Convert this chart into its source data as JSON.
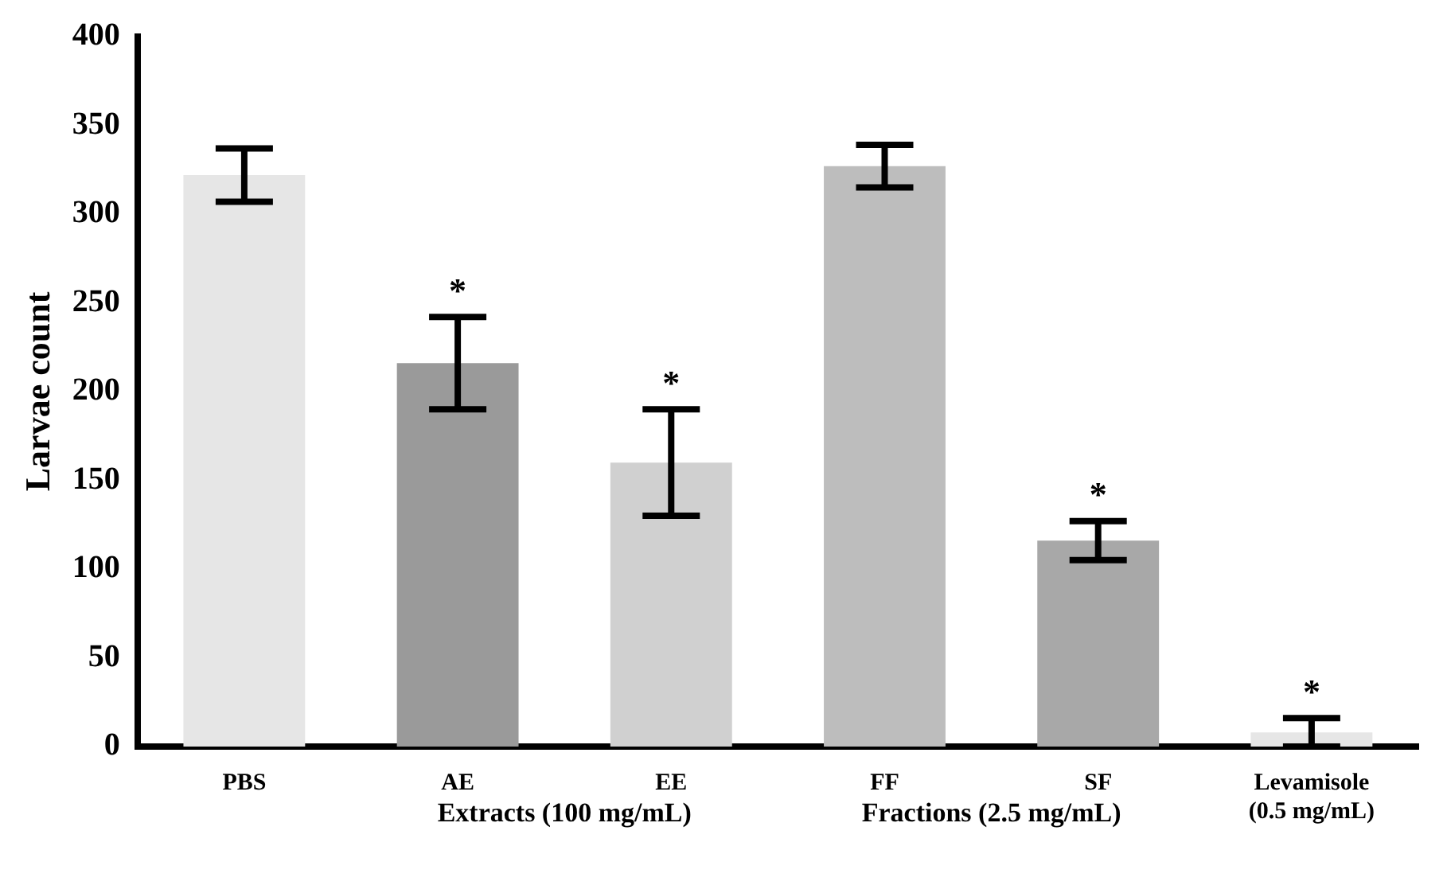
{
  "chart_data": {
    "type": "bar",
    "ylabel": "Larvae count",
    "categories": [
      "PBS",
      "AE",
      "EE",
      "FF",
      "SF",
      "Levamisole (0.5 mg/mL)"
    ],
    "values": [
      322,
      216,
      160,
      327,
      116,
      8
    ],
    "errors": [
      15,
      26,
      30,
      12,
      11,
      8
    ],
    "colors": [
      "#e6e6e6",
      "#9a9a9a",
      "#d0d0d0",
      "#bdbdbd",
      "#a8a8a8",
      "#e6e6e6"
    ],
    "ylim": [
      0,
      400
    ],
    "yticks": [
      0,
      50,
      100,
      150,
      200,
      250,
      300,
      350,
      400
    ],
    "grid": false,
    "annotations": [
      {
        "text": "*",
        "x": "AE",
        "y": 242
      },
      {
        "text": "*",
        "x": "EE",
        "y": 190
      },
      {
        "text": "*",
        "x": "SF",
        "y": 127
      },
      {
        "text": "*",
        "x": "Levamisole (0.5 mg/mL)",
        "y": 16
      },
      "Extracts (100 mg/mL)",
      "Fractions (2.5 mg/mL)"
    ]
  }
}
